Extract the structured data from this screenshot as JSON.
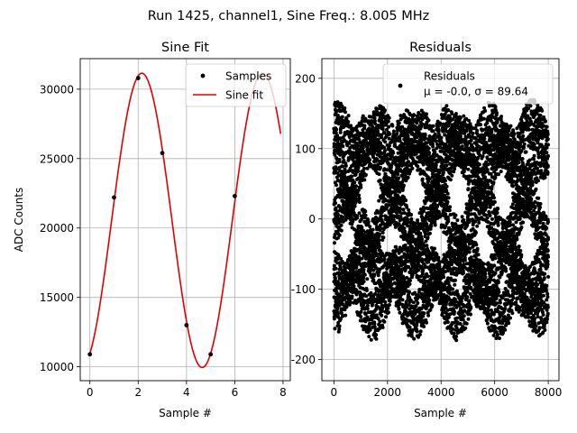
{
  "figure": {
    "suptitle": "Run 1425, channel1, Sine Freq.: 8.005 MHz"
  },
  "colors": {
    "samples": "#000000",
    "fit": "#e00000",
    "grid": "#b0b0b0",
    "legend_bg": "#ffffff"
  },
  "chart_data": [
    {
      "type": "scatter",
      "title": "Sine Fit",
      "xlabel": "Sample #",
      "ylabel": "ADC Counts",
      "xlim": [
        -0.4,
        8.3
      ],
      "ylim": [
        9000,
        32200
      ],
      "xticks": [
        0,
        2,
        4,
        6,
        8
      ],
      "yticks": [
        10000,
        15000,
        20000,
        25000,
        30000
      ],
      "grid": true,
      "legend_position": "top-right",
      "series": [
        {
          "name": "Samples",
          "kind": "points",
          "x": [
            0,
            1,
            2,
            3,
            4,
            5,
            6,
            7
          ],
          "y": [
            10900,
            22200,
            30800,
            25400,
            13000,
            10900,
            22300,
            30900
          ]
        },
        {
          "name": "Sine fit",
          "kind": "line",
          "model": {
            "offset": 20550,
            "amplitude": 10600,
            "period_samples": 5.0,
            "peak_x": 2.15
          },
          "x_range": [
            0,
            7.9
          ]
        }
      ]
    },
    {
      "type": "scatter",
      "title": "Residuals",
      "xlabel": "Sample #",
      "ylabel": "",
      "xlim": [
        -450,
        8400
      ],
      "ylim": [
        -230,
        228
      ],
      "xticks": [
        0,
        2000,
        4000,
        6000,
        8000
      ],
      "yticks": [
        -200,
        -100,
        0,
        100,
        200
      ],
      "grid": true,
      "legend_position": "top-right",
      "legend_lines": [
        "Residuals",
        "μ = -0.0, σ = 89.64"
      ],
      "series": [
        {
          "name": "Residuals",
          "kind": "points",
          "n_points": 8000,
          "x_range": [
            0,
            8000
          ],
          "mean": -0.0,
          "sigma": 89.64,
          "min": -210,
          "max": 208,
          "beat_period": 1500
        }
      ]
    }
  ]
}
